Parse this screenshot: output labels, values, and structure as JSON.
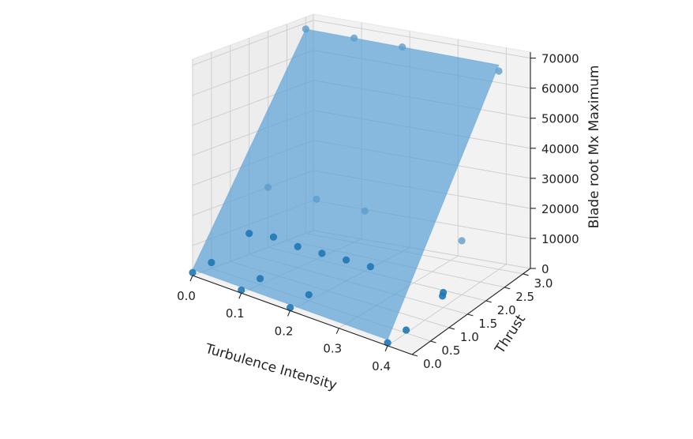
{
  "chart_data": {
    "type": "scatter",
    "subtype": "3d-surface-with-scatter",
    "xlabel": "Turbulence Intensity",
    "ylabel": "Thrust",
    "zlabel": "Blade root Mx Maximum",
    "x_ticks": [
      "0.0",
      "0.1",
      "0.2",
      "0.3",
      "0.4"
    ],
    "y_ticks": [
      "0.0",
      "0.5",
      "1.0",
      "1.5",
      "2.0",
      "2.5",
      "3.0"
    ],
    "z_ticks": [
      "0",
      "10000",
      "20000",
      "30000",
      "40000",
      "50000",
      "60000",
      "70000"
    ],
    "xlim": [
      0,
      0.45
    ],
    "ylim": [
      0,
      3.2
    ],
    "zlim": [
      0,
      72000
    ],
    "grid": true,
    "surface_color": "#5a9fd4",
    "point_color": "#1f77b4",
    "pane_color": "#f2f2f2",
    "surface": {
      "x_range": [
        0.0,
        0.4
      ],
      "y_range": [
        0.0,
        3.0
      ],
      "z_corners": {
        "x0_y0": 2000,
        "x04_y0": 2000,
        "x0_y3": 68000,
        "x04_y3": 68000
      }
    },
    "points": [
      {
        "x": 0.0,
        "y": 3.0,
        "z": 68000
      },
      {
        "x": 0.1,
        "y": 3.0,
        "z": 68000
      },
      {
        "x": 0.2,
        "y": 3.0,
        "z": 68000
      },
      {
        "x": 0.4,
        "y": 3.0,
        "z": 66000
      },
      {
        "x": 0.0,
        "y": 2.0,
        "z": 20000
      },
      {
        "x": 0.1,
        "y": 2.0,
        "z": 20000
      },
      {
        "x": 0.2,
        "y": 2.0,
        "z": 20000
      },
      {
        "x": 0.4,
        "y": 2.0,
        "z": 18000
      },
      {
        "x": 0.0,
        "y": 1.5,
        "z": 7000
      },
      {
        "x": 0.05,
        "y": 1.5,
        "z": 8000
      },
      {
        "x": 0.1,
        "y": 1.5,
        "z": 7000
      },
      {
        "x": 0.15,
        "y": 1.5,
        "z": 7000
      },
      {
        "x": 0.2,
        "y": 1.5,
        "z": 7000
      },
      {
        "x": 0.25,
        "y": 1.5,
        "z": 7000
      },
      {
        "x": 0.4,
        "y": 1.5,
        "z": 5000
      },
      {
        "x": 0.4,
        "y": 1.48,
        "z": 4000
      },
      {
        "x": 0.0,
        "y": 0.5,
        "z": 2000
      },
      {
        "x": 0.1,
        "y": 0.5,
        "z": 2000
      },
      {
        "x": 0.2,
        "y": 0.5,
        "z": 2000
      },
      {
        "x": 0.0,
        "y": 0.0,
        "z": 1000
      },
      {
        "x": 0.1,
        "y": 0.0,
        "z": 1000
      },
      {
        "x": 0.2,
        "y": 0.0,
        "z": 1000
      },
      {
        "x": 0.4,
        "y": 0.5,
        "z": 1000
      },
      {
        "x": 0.4,
        "y": 0.0,
        "z": 1000
      }
    ]
  }
}
